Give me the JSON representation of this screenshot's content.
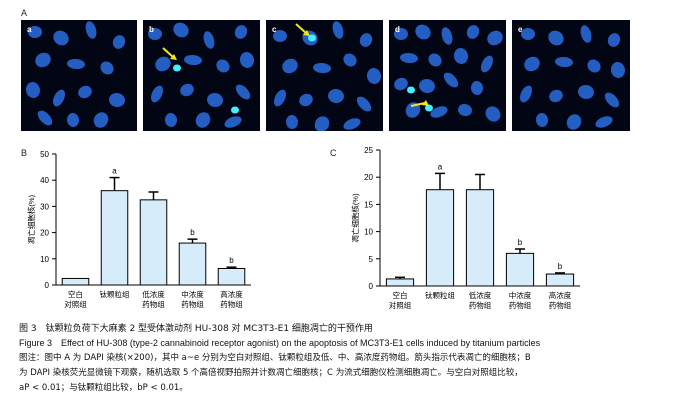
{
  "figure": {
    "label_A": "A",
    "label_B": "B",
    "label_C": "C",
    "micrographs": [
      {
        "label": "a",
        "arrow": false
      },
      {
        "label": "b",
        "arrow": true
      },
      {
        "label": "c",
        "arrow": true
      },
      {
        "label": "d",
        "arrow": true
      },
      {
        "label": "e",
        "arrow": false
      }
    ],
    "colors": {
      "nucleus": "#2a6fe0",
      "bright_nucleus": "#44f0ff",
      "arrow": "#f5e61b",
      "bar_fill": "#d7ecfa",
      "bar_stroke": "#000000"
    }
  },
  "chart_data": [
    {
      "type": "bar",
      "panel": "B",
      "ylabel": "凋亡细胞核(%)",
      "ylim": [
        0,
        50
      ],
      "yticks": [
        0,
        10,
        20,
        30,
        40,
        50
      ],
      "categories": [
        [
          "空白",
          "对照组"
        ],
        [
          "钛颗粒组"
        ],
        [
          "低浓度",
          "药物组"
        ],
        [
          "中浓度",
          "药物组"
        ],
        [
          "高浓度",
          "药物组"
        ]
      ],
      "values": [
        2.5,
        36,
        32.5,
        16,
        6.3
      ],
      "errors": [
        0,
        5,
        3,
        1.5,
        0.5
      ],
      "significance": [
        "",
        "a",
        "",
        "b",
        "b"
      ]
    },
    {
      "type": "bar",
      "panel": "C",
      "ylabel": "凋亡细胞核(%)",
      "ylim": [
        0,
        25
      ],
      "yticks": [
        0,
        5,
        10,
        15,
        20,
        25
      ],
      "categories": [
        [
          "空白",
          "对照组"
        ],
        [
          "钛颗粒组"
        ],
        [
          "低浓度",
          "药物组"
        ],
        [
          "中浓度",
          "药物组"
        ],
        [
          "高浓度",
          "药物组"
        ]
      ],
      "values": [
        1.3,
        17.7,
        17.7,
        6,
        2.2
      ],
      "errors": [
        0.3,
        3,
        2.8,
        0.8,
        0.2
      ],
      "significance": [
        "",
        "a",
        "",
        "b",
        "b"
      ]
    }
  ],
  "caption": {
    "cn": "图 3　钛颗粒负荷下大麻素 2 型受体激动剂 HU-308 对 MC3T3-E1 细胞凋亡的干预作用",
    "en": "Figure 3　Effect of HU-308 (type-2 cannabinoid receptor agonist) on the apoptosis of MC3T3-E1 cells induced by titanium particles",
    "note_line1": "图注：图中 A 为 DAPI 染核(×200)，其中 a~e 分别为空白对照组、钛颗粒组及低、中、高浓度药物组。箭头指示代表凋亡的细胞核；B",
    "note_line2": "为 DAPI 染核荧光显微镜下观察，随机选取 5 个高倍视野拍照并计数凋亡细胞核；C 为流式细胞仪检测细胞凋亡。与空白对照组比较，",
    "note_line3": "aP < 0.01；与钛颗粒组比较，bP < 0.01。"
  }
}
